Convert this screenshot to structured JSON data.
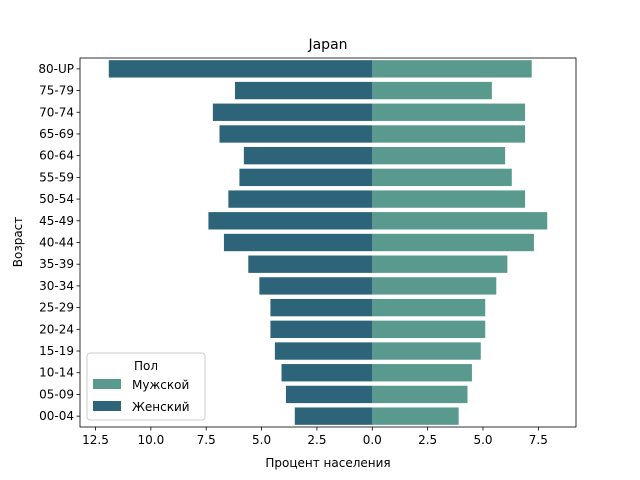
{
  "chart_data": {
    "type": "bar",
    "orientation": "horizontal",
    "title": "Japan",
    "xlabel": "Процент населения",
    "ylabel": "Возраст",
    "xlim": [
      -13.2,
      9.2
    ],
    "xticks": [
      -12.5,
      -10,
      -7.5,
      -5,
      -2.5,
      0,
      2.5,
      5,
      7.5
    ],
    "xtick_labels": [
      "12.5",
      "10.0",
      "7.5",
      "5.0",
      "2.5",
      "0.0",
      "2.5",
      "5.0",
      "7.5"
    ],
    "categories": [
      "80-UP",
      "75-79",
      "70-74",
      "65-69",
      "60-64",
      "55-59",
      "50-54",
      "45-49",
      "40-44",
      "35-39",
      "30-34",
      "25-29",
      "20-24",
      "15-19",
      "10-14",
      "05-09",
      "00-04"
    ],
    "series": [
      {
        "name": "Мужской",
        "color": "#5a9a8e",
        "values": [
          7.2,
          5.4,
          6.9,
          6.9,
          6.0,
          6.3,
          6.9,
          7.9,
          7.3,
          6.1,
          5.6,
          5.1,
          5.1,
          4.9,
          4.5,
          4.3,
          3.9
        ]
      },
      {
        "name": "Женский",
        "color": "#2d647a",
        "values": [
          -11.9,
          -6.2,
          -7.2,
          -6.9,
          -5.8,
          -6.0,
          -6.5,
          -7.4,
          -6.7,
          -5.6,
          -5.1,
          -4.6,
          -4.6,
          -4.4,
          -4.1,
          -3.9,
          -3.5
        ]
      }
    ],
    "legend": {
      "title": "Пол",
      "placement": "lower-left",
      "entries": [
        "Мужской",
        "Женский"
      ]
    },
    "grid": false
  }
}
